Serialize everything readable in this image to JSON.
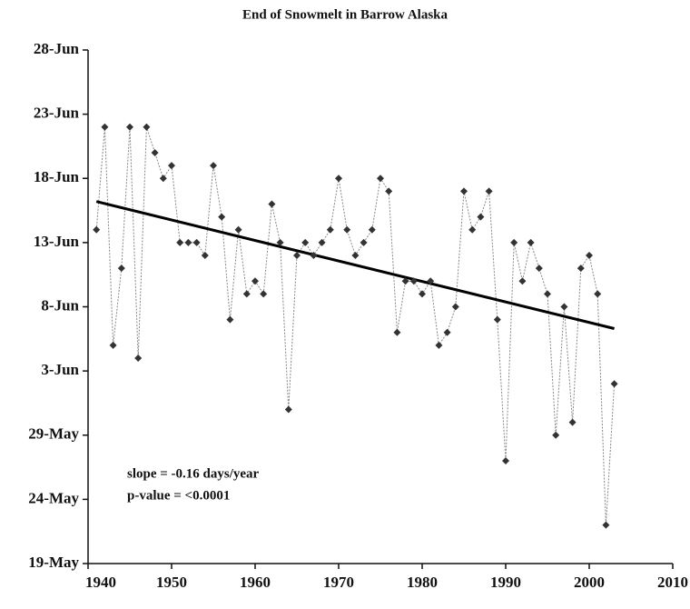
{
  "chart_data": {
    "type": "line",
    "title": "End of Snowmelt in Barrow Alaska",
    "x": [
      1941,
      1942,
      1943,
      1944,
      1945,
      1946,
      1947,
      1948,
      1949,
      1950,
      1951,
      1952,
      1953,
      1954,
      1955,
      1956,
      1957,
      1958,
      1959,
      1960,
      1961,
      1962,
      1963,
      1964,
      1965,
      1966,
      1967,
      1968,
      1969,
      1970,
      1971,
      1972,
      1973,
      1974,
      1975,
      1976,
      1977,
      1978,
      1979,
      1980,
      1981,
      1982,
      1983,
      1984,
      1985,
      1986,
      1987,
      1988,
      1989,
      1990,
      1991,
      1992,
      1993,
      1994,
      1995,
      1996,
      1997,
      1998,
      1999,
      2000,
      2001,
      2002,
      2003
    ],
    "values": [
      165,
      173,
      156,
      162,
      173,
      155,
      173,
      171,
      169,
      170,
      164,
      164,
      164,
      163,
      170,
      166,
      158,
      165,
      160,
      161,
      160,
      167,
      164,
      151,
      163,
      164,
      163,
      164,
      165,
      169,
      165,
      163,
      164,
      165,
      169,
      168,
      157,
      161,
      161,
      160,
      161,
      156,
      157,
      159,
      168,
      165,
      166,
      168,
      158,
      147,
      164,
      161,
      164,
      162,
      160,
      149,
      159,
      150,
      162,
      163,
      160,
      142,
      153
    ],
    "color": "#333333",
    "trend_line": {
      "x": [
        1941,
        2003
      ],
      "values": [
        167.2,
        157.3
      ],
      "color": "#000000"
    },
    "annotations": [
      "slope = -0.16 days/year",
      "p-value = <0.0001"
    ],
    "xlim": [
      1940,
      2010
    ],
    "xticks": [
      1940,
      1950,
      1960,
      1970,
      1980,
      1990,
      2000,
      2010
    ],
    "ylim": [
      139,
      179
    ],
    "yticks": [
      {
        "value": 139,
        "label": "19-May"
      },
      {
        "value": 144,
        "label": "24-May"
      },
      {
        "value": 149,
        "label": "29-May"
      },
      {
        "value": 154,
        "label": "3-Jun"
      },
      {
        "value": 159,
        "label": "8-Jun"
      },
      {
        "value": 164,
        "label": "13-Jun"
      },
      {
        "value": 169,
        "label": "18-Jun"
      },
      {
        "value": 174,
        "label": "23-Jun"
      },
      {
        "value": 179,
        "label": "28-Jun"
      }
    ],
    "grid": false
  }
}
